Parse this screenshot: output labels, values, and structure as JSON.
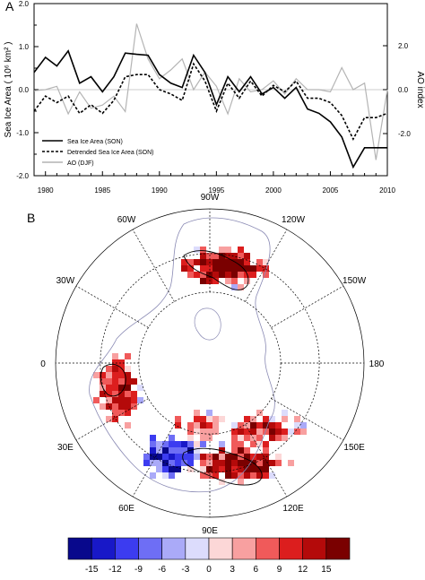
{
  "panels": {
    "a_label": "A",
    "b_label": "B"
  },
  "chart_data": [
    {
      "type": "line",
      "x": [
        1979,
        1980,
        1981,
        1982,
        1983,
        1984,
        1985,
        1986,
        1987,
        1988,
        1989,
        1990,
        1991,
        1992,
        1993,
        1994,
        1995,
        1996,
        1997,
        1998,
        1999,
        2000,
        2001,
        2002,
        2003,
        2004,
        2005,
        2006,
        2007,
        2008,
        2009,
        2010
      ],
      "xlim": [
        1979,
        2010
      ],
      "xticks": [
        "1980",
        "1985",
        "1990",
        "1995",
        "2000",
        "2005",
        "2010"
      ],
      "ylabel": "Sea Ice Area ( 10⁶ km² )",
      "ylim": [
        -2.0,
        2.0
      ],
      "yticks": [
        "2.0",
        "1.0",
        "0.0",
        "-1.0",
        "-2.0"
      ],
      "y2label": "AO index",
      "y2ticks": [
        "2.0",
        "0.0",
        "-2.0"
      ],
      "series": [
        {
          "name": "Sea Ice Area (SON)",
          "axis": "left",
          "style": "solid",
          "color": "#000000",
          "values": [
            0.4,
            0.75,
            0.55,
            0.9,
            0.15,
            0.3,
            -0.05,
            0.3,
            0.85,
            0.82,
            0.8,
            0.35,
            0.15,
            0.05,
            0.8,
            0.4,
            -0.35,
            0.3,
            -0.05,
            0.3,
            -0.1,
            0.05,
            -0.2,
            0.05,
            -0.45,
            -0.55,
            -0.75,
            -1.1,
            -1.8,
            -1.35,
            -1.35,
            -1.35
          ]
        },
        {
          "name": "Detrended Sea Ice Area (SON)",
          "axis": "left",
          "style": "dashed",
          "color": "#000000",
          "values": [
            -0.5,
            -0.15,
            -0.3,
            -0.15,
            -0.55,
            -0.35,
            -0.55,
            -0.25,
            0.3,
            0.35,
            0.35,
            0.0,
            -0.1,
            -0.25,
            0.6,
            0.2,
            -0.5,
            0.15,
            -0.2,
            0.2,
            -0.15,
            0.1,
            -0.05,
            0.2,
            -0.2,
            -0.2,
            -0.3,
            -0.6,
            -1.15,
            -0.65,
            -0.65,
            -0.55
          ]
        },
        {
          "name": "AO (DJF)",
          "axis": "right",
          "style": "solid",
          "color": "#b4b4b4",
          "values": [
            -0.05,
            0.0,
            0.15,
            -1.1,
            -0.1,
            -0.85,
            -0.7,
            -0.3,
            -1.0,
            3.0,
            1.4,
            0.5,
            0.9,
            1.4,
            0.0,
            0.8,
            0.15,
            -1.1,
            0.5,
            -0.1,
            0.0,
            0.4,
            -0.2,
            0.5,
            0.0,
            0.0,
            -0.1,
            1.0,
            0.0,
            0.3,
            -3.2,
            0.0
          ]
        }
      ]
    },
    {
      "type": "heatmap",
      "projection": "polar stereographic",
      "lon_labels": [
        "90W",
        "120W",
        "150W",
        "180",
        "150E",
        "120E",
        "90E",
        "60E",
        "30E",
        "0",
        "30W",
        "60W"
      ],
      "colorbar": {
        "ticks": [
          "-15",
          "-12",
          "-9",
          "-6",
          "-3",
          "0",
          "3",
          "6",
          "9",
          "12",
          "15"
        ],
        "colors": [
          "#08088c",
          "#1818c8",
          "#3c3cf0",
          "#6e6ef5",
          "#aaaaf8",
          "#dcdcfc",
          "#fcd7d7",
          "#f8a0a0",
          "#f05a5a",
          "#dc1e1e",
          "#b40a0a",
          "#7a0000"
        ]
      }
    }
  ]
}
